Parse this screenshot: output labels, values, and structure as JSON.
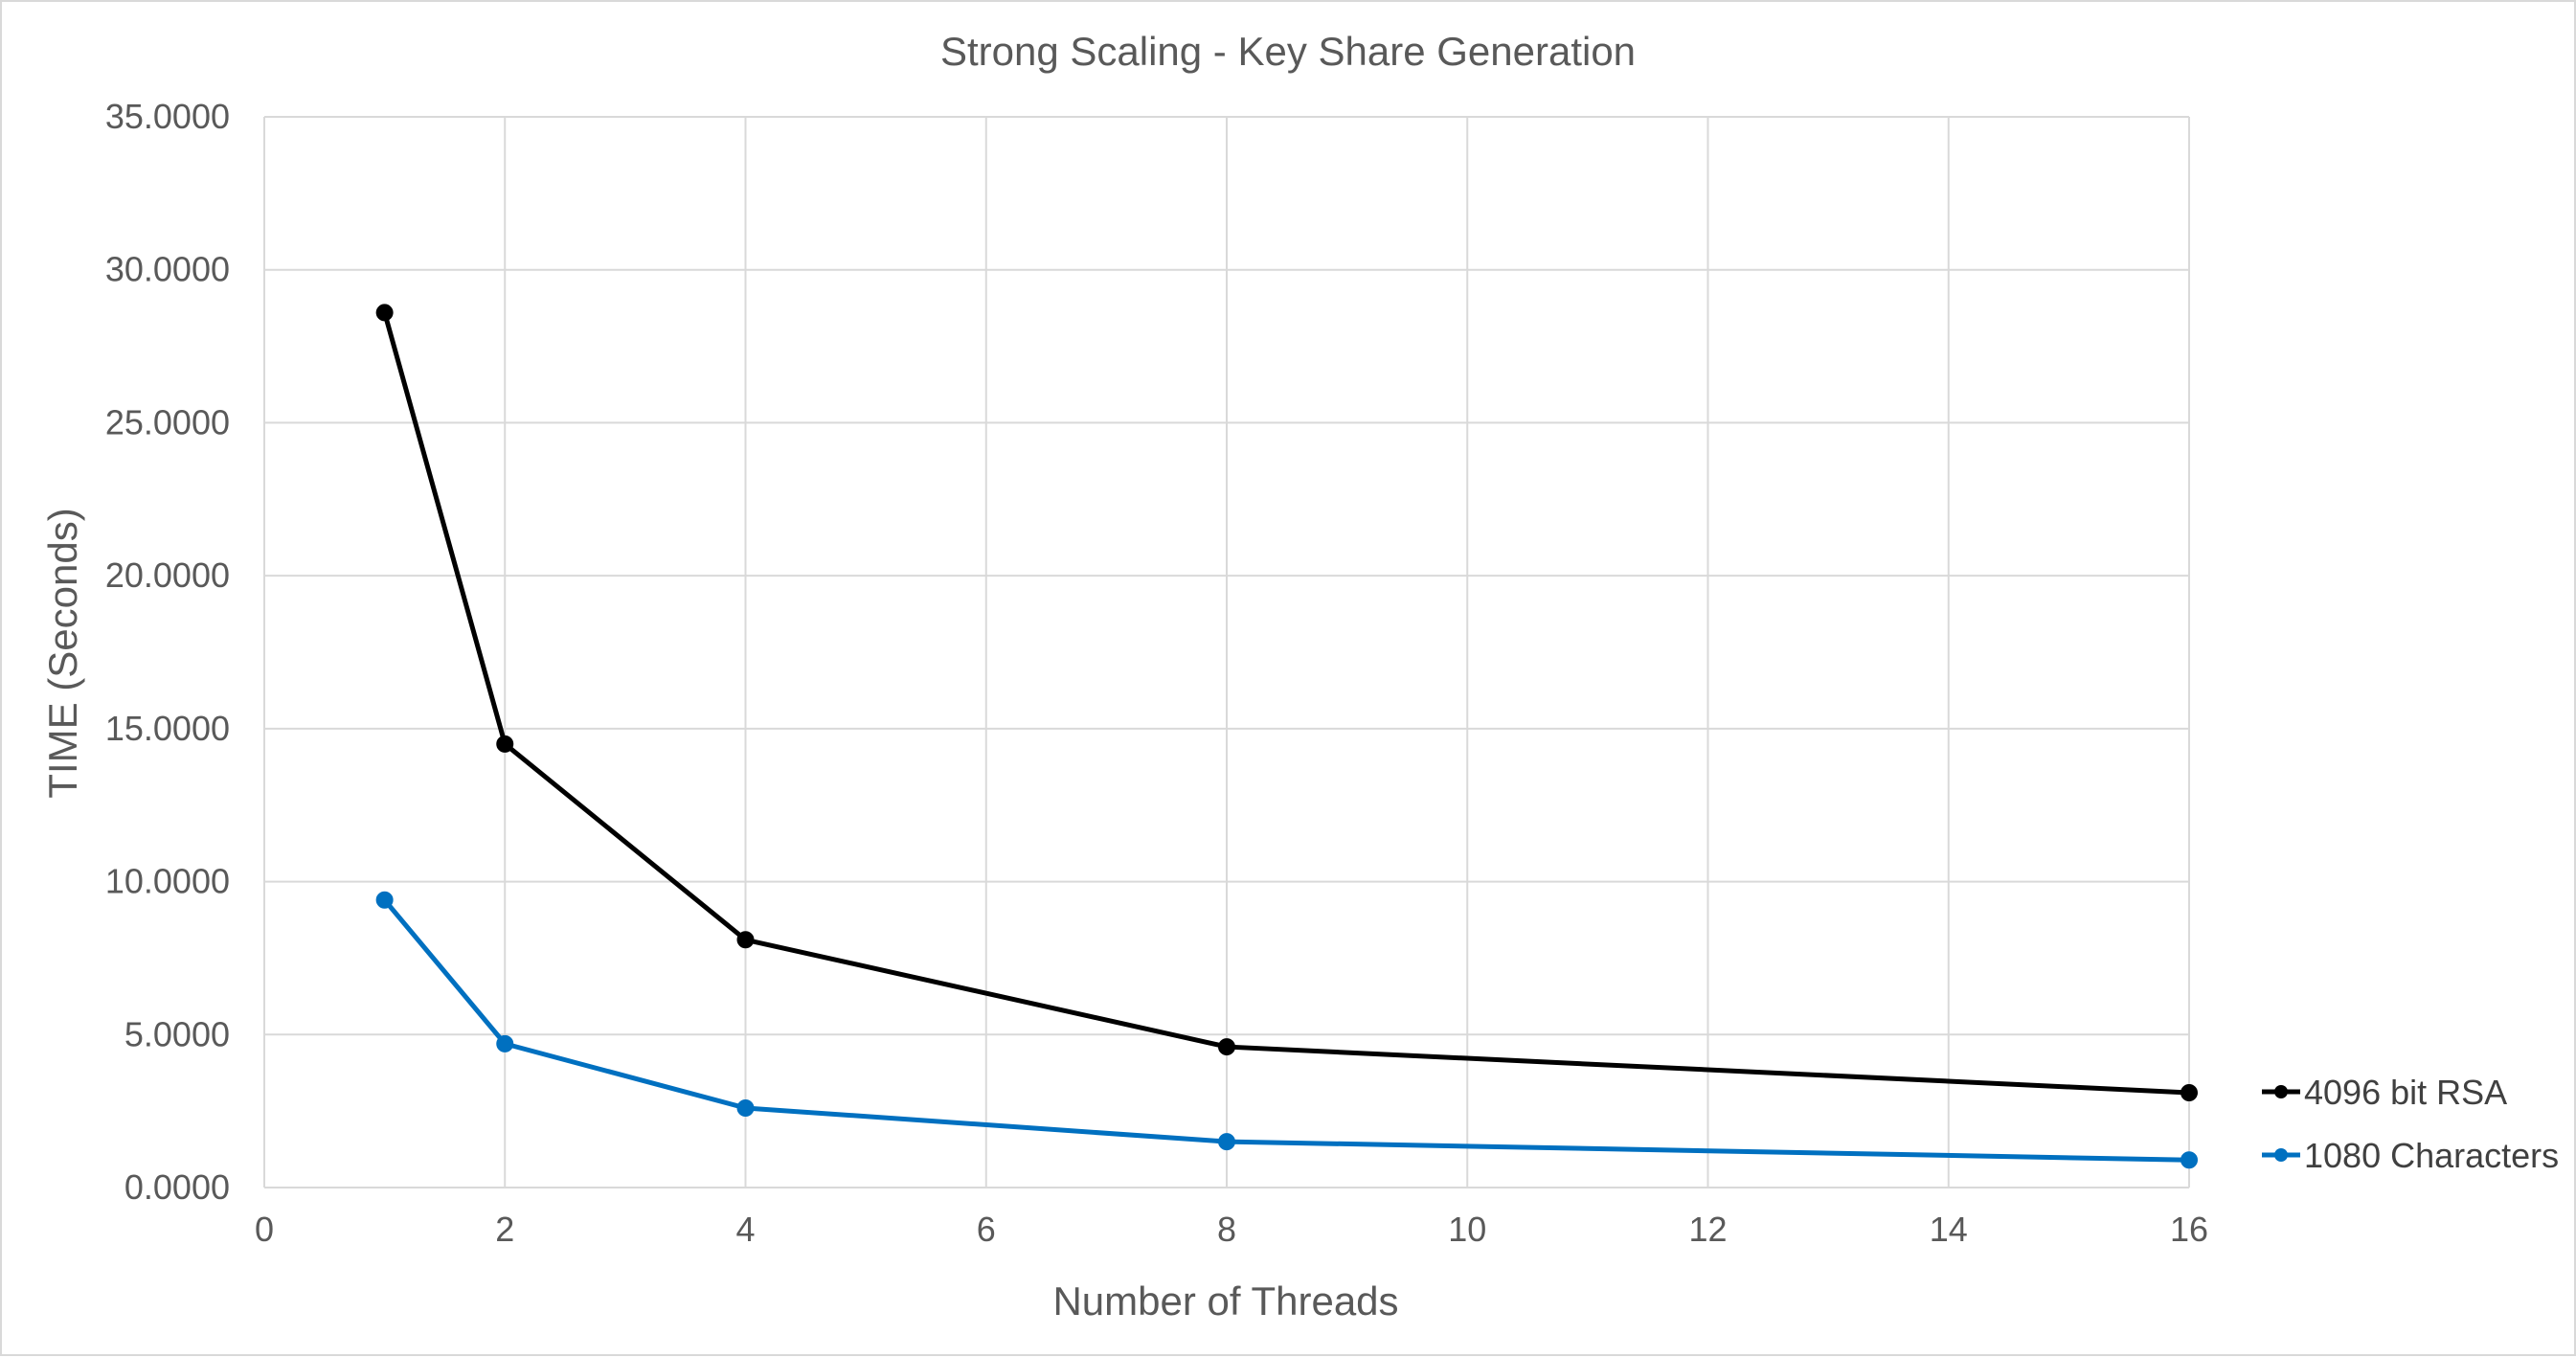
{
  "chart_data": {
    "type": "scatter",
    "title": "Strong Scaling - Key Share Generation",
    "xlabel": "Number of Threads",
    "ylabel": "TIME (Seconds)",
    "xlim": [
      0,
      16
    ],
    "ylim": [
      0,
      35
    ],
    "x_ticks": [
      0,
      2,
      4,
      6,
      8,
      10,
      12,
      14,
      16
    ],
    "x_tick_labels": [
      "0",
      "2",
      "4",
      "6",
      "8",
      "10",
      "12",
      "14",
      "16"
    ],
    "y_ticks": [
      0,
      5,
      10,
      15,
      20,
      25,
      30,
      35
    ],
    "y_tick_labels": [
      "0.0000",
      "5.0000",
      "10.0000",
      "15.0000",
      "20.0000",
      "25.0000",
      "30.0000",
      "35.0000"
    ],
    "grid": true,
    "legend_position": "right",
    "series": [
      {
        "name": "4096 bit RSA",
        "color": "#000000",
        "x": [
          1,
          2,
          4,
          8,
          16
        ],
        "y": [
          28.6,
          14.5,
          8.1,
          4.6,
          3.1
        ]
      },
      {
        "name": "1080 Characters",
        "color": "#0070c0",
        "x": [
          1,
          2,
          4,
          8,
          16
        ],
        "y": [
          9.4,
          4.7,
          2.6,
          1.5,
          0.9
        ]
      }
    ]
  }
}
